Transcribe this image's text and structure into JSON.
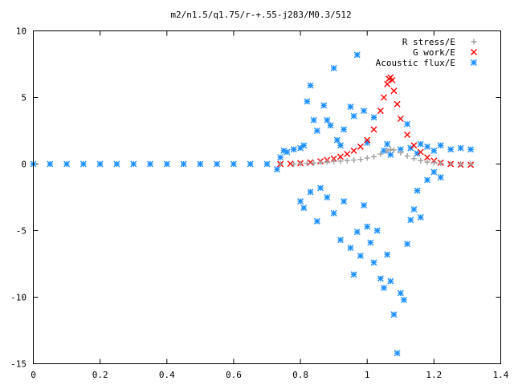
{
  "chart_data": {
    "type": "scatter",
    "title": "m2/n1.5/q1.75/r-+.55-j283/M0.3/512",
    "xlabel": "",
    "ylabel": "",
    "xlim": [
      0,
      1.4
    ],
    "ylim": [
      -15,
      10
    ],
    "xticks": [
      0,
      0.2,
      0.4,
      0.6,
      0.8,
      1,
      1.2,
      1.4
    ],
    "xtick_labels": [
      "0",
      "0.2",
      "0.4",
      "0.6",
      "0.8",
      "1",
      "1.2",
      "1.4"
    ],
    "yticks": [
      10,
      5,
      0,
      -5,
      -10,
      -15
    ],
    "ytick_labels": [
      "10",
      "5",
      "0",
      "-5",
      "-10",
      "-15"
    ],
    "grid": false,
    "legend_position": "top-right",
    "series": [
      {
        "name": "R stress/E",
        "marker": "plus",
        "color": "#a0a0a0",
        "points": [
          [
            0.74,
            0.0
          ],
          [
            0.78,
            0.0
          ],
          [
            0.8,
            0.02
          ],
          [
            0.82,
            0.05
          ],
          [
            0.84,
            0.08
          ],
          [
            0.86,
            0.12
          ],
          [
            0.88,
            0.15
          ],
          [
            0.9,
            0.2
          ],
          [
            0.92,
            0.22
          ],
          [
            0.94,
            0.25
          ],
          [
            0.96,
            0.3
          ],
          [
            0.98,
            0.35
          ],
          [
            1.0,
            0.45
          ],
          [
            1.02,
            0.55
          ],
          [
            1.04,
            0.75
          ],
          [
            1.06,
            1.0
          ],
          [
            1.07,
            1.1
          ],
          [
            1.08,
            1.05
          ],
          [
            1.1,
            0.85
          ],
          [
            1.12,
            0.6
          ],
          [
            1.14,
            0.4
          ],
          [
            1.16,
            0.25
          ],
          [
            1.18,
            0.15
          ],
          [
            1.2,
            0.1
          ],
          [
            1.22,
            0.05
          ],
          [
            1.25,
            0.02
          ],
          [
            1.28,
            0.0
          ],
          [
            1.31,
            0.0
          ]
        ]
      },
      {
        "name": "G work/E",
        "marker": "cross",
        "color": "#ff0000",
        "points": [
          [
            0.74,
            0.0
          ],
          [
            0.77,
            0.02
          ],
          [
            0.8,
            0.06
          ],
          [
            0.83,
            0.12
          ],
          [
            0.86,
            0.2
          ],
          [
            0.88,
            0.3
          ],
          [
            0.9,
            0.4
          ],
          [
            0.92,
            0.55
          ],
          [
            0.94,
            0.75
          ],
          [
            0.96,
            1.0
          ],
          [
            0.98,
            1.3
          ],
          [
            1.0,
            1.8
          ],
          [
            1.02,
            2.6
          ],
          [
            1.04,
            4.0
          ],
          [
            1.05,
            5.0
          ],
          [
            1.06,
            6.0
          ],
          [
            1.065,
            6.4
          ],
          [
            1.07,
            6.5
          ],
          [
            1.075,
            6.3
          ],
          [
            1.08,
            5.5
          ],
          [
            1.09,
            4.5
          ],
          [
            1.1,
            3.4
          ],
          [
            1.12,
            2.2
          ],
          [
            1.14,
            1.4
          ],
          [
            1.16,
            0.9
          ],
          [
            1.18,
            0.5
          ],
          [
            1.2,
            0.25
          ],
          [
            1.22,
            0.1
          ],
          [
            1.25,
            0.0
          ],
          [
            1.28,
            -0.05
          ],
          [
            1.31,
            -0.05
          ]
        ]
      },
      {
        "name": "Acoustic flux/E",
        "marker": "star",
        "color": "#1e90ff",
        "points": [
          [
            0.0,
            0.0
          ],
          [
            0.05,
            0.0
          ],
          [
            0.1,
            0.0
          ],
          [
            0.15,
            0.0
          ],
          [
            0.2,
            0.0
          ],
          [
            0.25,
            0.0
          ],
          [
            0.3,
            0.0
          ],
          [
            0.35,
            0.0
          ],
          [
            0.4,
            0.0
          ],
          [
            0.45,
            0.0
          ],
          [
            0.5,
            0.0
          ],
          [
            0.55,
            0.0
          ],
          [
            0.6,
            0.0
          ],
          [
            0.65,
            0.0
          ],
          [
            0.7,
            0.0
          ],
          [
            0.73,
            -0.4
          ],
          [
            0.74,
            0.5
          ],
          [
            0.75,
            1.0
          ],
          [
            0.76,
            0.9
          ],
          [
            0.78,
            1.1
          ],
          [
            0.8,
            1.2
          ],
          [
            0.81,
            1.4
          ],
          [
            0.82,
            4.7
          ],
          [
            0.83,
            5.9
          ],
          [
            0.84,
            3.3
          ],
          [
            0.85,
            2.5
          ],
          [
            0.87,
            4.4
          ],
          [
            0.88,
            3.3
          ],
          [
            0.89,
            2.9
          ],
          [
            0.9,
            7.2
          ],
          [
            0.91,
            1.8
          ],
          [
            0.92,
            1.4
          ],
          [
            0.93,
            2.6
          ],
          [
            0.95,
            4.3
          ],
          [
            0.96,
            3.6
          ],
          [
            0.97,
            8.2
          ],
          [
            0.99,
            4.0
          ],
          [
            1.0,
            1.6
          ],
          [
            1.02,
            3.5
          ],
          [
            1.05,
            1.0
          ],
          [
            1.06,
            1.5
          ],
          [
            1.07,
            0.7
          ],
          [
            1.1,
            1.1
          ],
          [
            1.12,
            3.0
          ],
          [
            1.13,
            1.2
          ],
          [
            1.15,
            0.8
          ],
          [
            1.16,
            1.5
          ],
          [
            1.18,
            1.3
          ],
          [
            1.2,
            1.0
          ],
          [
            1.22,
            1.4
          ],
          [
            1.25,
            1.1
          ],
          [
            1.28,
            1.2
          ],
          [
            1.31,
            1.1
          ],
          [
            0.8,
            -2.8
          ],
          [
            0.81,
            -3.3
          ],
          [
            0.83,
            -2.1
          ],
          [
            0.85,
            -4.3
          ],
          [
            0.86,
            -1.8
          ],
          [
            0.88,
            -2.5
          ],
          [
            0.9,
            -3.7
          ],
          [
            0.92,
            -5.7
          ],
          [
            0.93,
            -2.8
          ],
          [
            0.95,
            -6.3
          ],
          [
            0.96,
            -8.3
          ],
          [
            0.97,
            -5.1
          ],
          [
            0.98,
            -6.9
          ],
          [
            0.99,
            -3.1
          ],
          [
            1.0,
            -4.7
          ],
          [
            1.01,
            -5.9
          ],
          [
            1.02,
            -7.4
          ],
          [
            1.03,
            -5.0
          ],
          [
            1.04,
            -8.6
          ],
          [
            1.05,
            -9.3
          ],
          [
            1.06,
            -6.8
          ],
          [
            1.07,
            -8.8
          ],
          [
            1.08,
            -11.3
          ],
          [
            1.09,
            -14.2
          ],
          [
            1.1,
            -9.7
          ],
          [
            1.11,
            -10.2
          ],
          [
            1.12,
            -6.0
          ],
          [
            1.13,
            -4.2
          ],
          [
            1.14,
            -3.4
          ],
          [
            1.15,
            -2.0
          ],
          [
            1.16,
            -4.0
          ],
          [
            1.18,
            -1.2
          ],
          [
            1.2,
            -0.6
          ],
          [
            1.22,
            -1.0
          ]
        ]
      }
    ]
  }
}
